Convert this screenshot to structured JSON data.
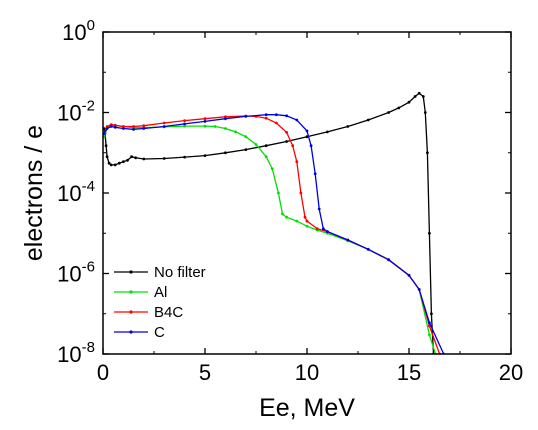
{
  "chart_data": {
    "type": "line",
    "title": "",
    "xlabel": "Ee, MeV",
    "ylabel": "electrons / e",
    "xlim": [
      0,
      20
    ],
    "ylim": [
      1e-08,
      1
    ],
    "yscale": "log",
    "grid": false,
    "legend_position": "bottom-left",
    "x_ticks": [
      {
        "value": 0,
        "label": "0"
      },
      {
        "value": 5,
        "label": "5"
      },
      {
        "value": 10,
        "label": "10"
      },
      {
        "value": 15,
        "label": "15"
      },
      {
        "value": 20,
        "label": "20"
      }
    ],
    "y_ticks": [
      {
        "value": 1e-08,
        "base": "10",
        "exp": "-8"
      },
      {
        "value": 1e-06,
        "base": "10",
        "exp": "-6"
      },
      {
        "value": 0.0001,
        "base": "10",
        "exp": "-4"
      },
      {
        "value": 0.01,
        "base": "10",
        "exp": "-2"
      },
      {
        "value": 1,
        "base": "10",
        "exp": "0"
      }
    ],
    "series": [
      {
        "name": "No filter",
        "color": "#000000",
        "points": [
          [
            0.05,
            0.004
          ],
          [
            0.1,
            0.003
          ],
          [
            0.15,
            0.0015
          ],
          [
            0.2,
            0.0008
          ],
          [
            0.3,
            0.00055
          ],
          [
            0.4,
            0.0005
          ],
          [
            0.6,
            0.0005
          ],
          [
            0.8,
            0.00055
          ],
          [
            1.0,
            0.0006
          ],
          [
            1.2,
            0.00065
          ],
          [
            1.4,
            0.0008
          ],
          [
            1.6,
            0.00075
          ],
          [
            2,
            0.0007
          ],
          [
            3,
            0.00072
          ],
          [
            4,
            0.00078
          ],
          [
            5,
            0.00085
          ],
          [
            6,
            0.001
          ],
          [
            7,
            0.0012
          ],
          [
            8,
            0.0015
          ],
          [
            9,
            0.0019
          ],
          [
            10,
            0.0025
          ],
          [
            11,
            0.0033
          ],
          [
            12,
            0.0045
          ],
          [
            13,
            0.0065
          ],
          [
            14,
            0.01
          ],
          [
            14.5,
            0.013
          ],
          [
            15,
            0.018
          ],
          [
            15.3,
            0.025
          ],
          [
            15.5,
            0.03
          ],
          [
            15.7,
            0.025
          ],
          [
            15.8,
            0.01
          ],
          [
            15.9,
            0.001
          ],
          [
            16.0,
            1e-05
          ],
          [
            16.1,
            1e-07
          ],
          [
            16.2,
            1e-08
          ]
        ]
      },
      {
        "name": "Al",
        "color": "#00e000",
        "points": [
          [
            0.05,
            0.0025
          ],
          [
            0.2,
            0.004
          ],
          [
            0.4,
            0.0048
          ],
          [
            0.6,
            0.0048
          ],
          [
            1,
            0.0045
          ],
          [
            1.5,
            0.0042
          ],
          [
            2,
            0.0042
          ],
          [
            3,
            0.0044
          ],
          [
            4,
            0.0046
          ],
          [
            5,
            0.0046
          ],
          [
            5.5,
            0.0045
          ],
          [
            6,
            0.004
          ],
          [
            6.5,
            0.0033
          ],
          [
            7,
            0.0025
          ],
          [
            7.5,
            0.0016
          ],
          [
            8,
            0.0008
          ],
          [
            8.3,
            0.0004
          ],
          [
            8.6,
            0.0001
          ],
          [
            8.8,
            3e-05
          ],
          [
            9,
            2.5e-05
          ],
          [
            9.5,
            2e-05
          ],
          [
            10,
            1.5e-05
          ],
          [
            10.5,
            1.2e-05
          ],
          [
            11,
            1e-05
          ],
          [
            12,
            6.5e-06
          ],
          [
            13,
            4e-06
          ],
          [
            14,
            2.2e-06
          ],
          [
            15,
            9e-07
          ],
          [
            15.5,
            4e-07
          ],
          [
            16,
            3e-08
          ],
          [
            16.3,
            1e-08
          ]
        ]
      },
      {
        "name": "B4C",
        "color": "#ff0000",
        "points": [
          [
            0.05,
            0.003
          ],
          [
            0.2,
            0.0045
          ],
          [
            0.4,
            0.005
          ],
          [
            0.6,
            0.0048
          ],
          [
            1,
            0.0045
          ],
          [
            1.5,
            0.0045
          ],
          [
            2,
            0.0047
          ],
          [
            3,
            0.0055
          ],
          [
            4,
            0.0063
          ],
          [
            5,
            0.007
          ],
          [
            6,
            0.0078
          ],
          [
            7,
            0.0082
          ],
          [
            7.5,
            0.008
          ],
          [
            8,
            0.0072
          ],
          [
            8.5,
            0.0055
          ],
          [
            9,
            0.0032
          ],
          [
            9.3,
            0.0015
          ],
          [
            9.5,
            0.0006
          ],
          [
            9.7,
            0.0001
          ],
          [
            9.9,
            2.5e-05
          ],
          [
            10,
            2e-05
          ],
          [
            10.5,
            1.3e-05
          ],
          [
            11,
            1.1e-05
          ],
          [
            12,
            6.8e-06
          ],
          [
            13,
            4e-06
          ],
          [
            14,
            2.2e-06
          ],
          [
            15,
            9e-07
          ],
          [
            15.5,
            4e-07
          ],
          [
            16,
            5e-08
          ],
          [
            16.5,
            1e-08
          ]
        ]
      },
      {
        "name": "C",
        "color": "#0000dd",
        "points": [
          [
            0.05,
            0.003
          ],
          [
            0.2,
            0.004
          ],
          [
            0.4,
            0.0045
          ],
          [
            0.6,
            0.0043
          ],
          [
            1,
            0.004
          ],
          [
            1.5,
            0.0038
          ],
          [
            2,
            0.004
          ],
          [
            3,
            0.0045
          ],
          [
            4,
            0.0052
          ],
          [
            5,
            0.006
          ],
          [
            6,
            0.007
          ],
          [
            7,
            0.008
          ],
          [
            8,
            0.0088
          ],
          [
            8.5,
            0.0088
          ],
          [
            9,
            0.0083
          ],
          [
            9.5,
            0.0065
          ],
          [
            10,
            0.0035
          ],
          [
            10.2,
            0.0015
          ],
          [
            10.4,
            0.0003
          ],
          [
            10.6,
            4e-05
          ],
          [
            10.8,
            1.3e-05
          ],
          [
            11,
            1.1e-05
          ],
          [
            12,
            6.8e-06
          ],
          [
            13,
            4e-06
          ],
          [
            14,
            2.2e-06
          ],
          [
            15,
            9e-07
          ],
          [
            15.5,
            4e-07
          ],
          [
            16,
            6e-08
          ],
          [
            16.7,
            1e-08
          ]
        ]
      }
    ]
  }
}
